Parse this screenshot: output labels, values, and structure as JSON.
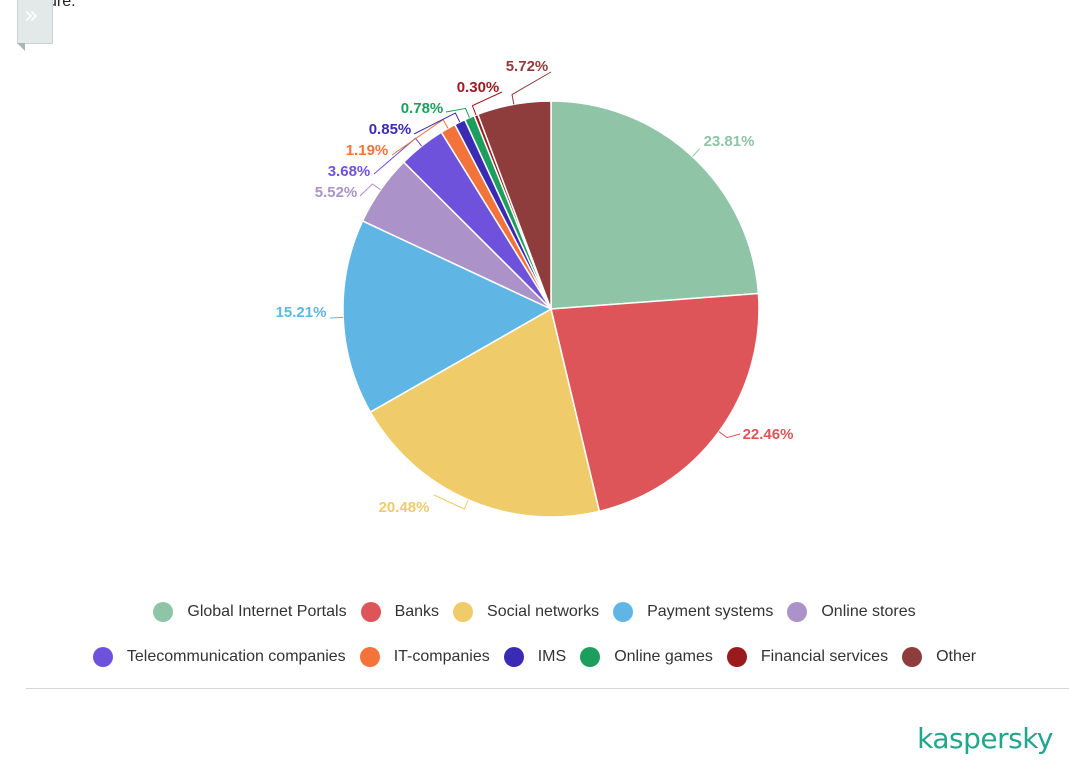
{
  "page": {
    "cut_text": "ure.",
    "brand": "kaspersky",
    "expand_icon_glyph": "»"
  },
  "chart_data": {
    "type": "pie",
    "title": "",
    "start_angle_deg": 0,
    "direction": "clockwise",
    "slices": [
      {
        "label": "Global Internet Portals",
        "value": 23.81,
        "display": "23.81%",
        "color": "#8fc4a6"
      },
      {
        "label": "Banks",
        "value": 22.46,
        "display": "22.46%",
        "color": "#dd5558"
      },
      {
        "label": "Social networks",
        "value": 20.48,
        "display": "20.48%",
        "color": "#efcb6a"
      },
      {
        "label": "Payment systems",
        "value": 15.21,
        "display": "15.21%",
        "color": "#5fb6e4"
      },
      {
        "label": "Online stores",
        "value": 5.52,
        "display": "5.52%",
        "color": "#ab92c9"
      },
      {
        "label": "Telecommunication companies",
        "value": 3.68,
        "display": "3.68%",
        "color": "#6f52dc"
      },
      {
        "label": "IT-companies",
        "value": 1.19,
        "display": "1.19%",
        "color": "#f4733a"
      },
      {
        "label": "IMS",
        "value": 0.85,
        "display": "0.85%",
        "color": "#3b2bb4"
      },
      {
        "label": "Online games",
        "value": 0.78,
        "display": "0.78%",
        "color": "#1c9e5c"
      },
      {
        "label": "Financial services",
        "value": 0.3,
        "display": "0.30%",
        "color": "#9a1a1e"
      },
      {
        "label": "Other",
        "value": 5.72,
        "display": "5.72%",
        "color": "#8f3c3c"
      }
    ],
    "legend_rows": [
      [
        0,
        1,
        2,
        3,
        4
      ],
      [
        5,
        6,
        7,
        8,
        9,
        10
      ]
    ],
    "legend_placement": "bottom"
  }
}
